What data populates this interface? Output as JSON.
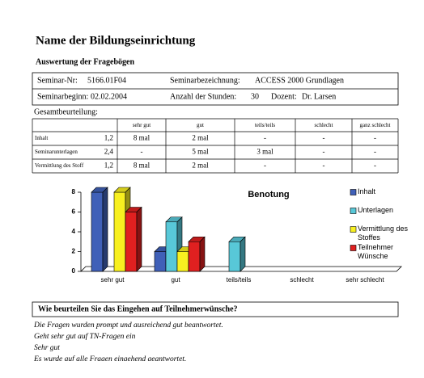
{
  "header": {
    "title": "Name der Bildungseinrichtung",
    "subtitle": "Auswertung der Fragebögen"
  },
  "info": {
    "rows": [
      [
        "Seminar-Nr:",
        "5166.01F04",
        "Seminarbezeichnung:",
        "ACCESS 2000 Grundlagen"
      ],
      [
        "Seminarbeginn:",
        "02.02.2004",
        "Anzahl der Stunden:",
        "30",
        "Dozent:",
        "Dr. Larsen"
      ]
    ]
  },
  "table": {
    "caption": "Gesamtbeurteilung:",
    "header": [
      "sehr gut",
      "gut",
      "teils/teils",
      "schlecht",
      "ganz schlecht"
    ],
    "rows": [
      {
        "label": "Inhalt",
        "grade": "1,2",
        "cells": [
          "8 mal",
          "2 mal",
          "-",
          "-",
          "-"
        ]
      },
      {
        "label": "Seminarunterlagen",
        "grade": "2,4",
        "cells": [
          "-",
          "5 mal",
          "3 mal",
          "-",
          "-"
        ]
      },
      {
        "label": "Vermittlung des Stoff",
        "grade": "1,2",
        "cells": [
          "8 mal",
          "2 mal",
          "-",
          "-",
          "-"
        ]
      }
    ]
  },
  "chart_data": {
    "type": "bar3d",
    "title": "Benotung",
    "categories": [
      "sehr gut",
      "gut",
      "teils/teils",
      "schlecht",
      "sehr schlecht"
    ],
    "series": [
      {
        "name": "Inhalt",
        "color": "#4060b8",
        "values": [
          8,
          2,
          null,
          null,
          null
        ]
      },
      {
        "name": "Unterlagen",
        "color": "#58c8d8",
        "values": [
          null,
          5,
          3,
          null,
          null
        ]
      },
      {
        "name": "Vermittlung des Stoffes",
        "color": "#f8f020",
        "values": [
          8,
          2,
          null,
          null,
          null
        ]
      },
      {
        "name": "Teilnehmer Wünsche",
        "color": "#e02020",
        "values": [
          6,
          3,
          null,
          null,
          null
        ]
      }
    ],
    "ylim": [
      0,
      8
    ],
    "yticks": [
      0,
      2,
      4,
      6,
      8
    ],
    "legend": "right"
  },
  "question": {
    "title": "Wie beurteilen Sie das Eingehen auf Teilnehmerwünsche?",
    "answers": [
      "Die Fragen wurden prompt und ausreichend gut beantwortet.",
      "Geht sehr gut auf TN-Fragen ein",
      "Sehr gut",
      "Es wurde auf alle Fragen eingehend geantwortet."
    ]
  }
}
